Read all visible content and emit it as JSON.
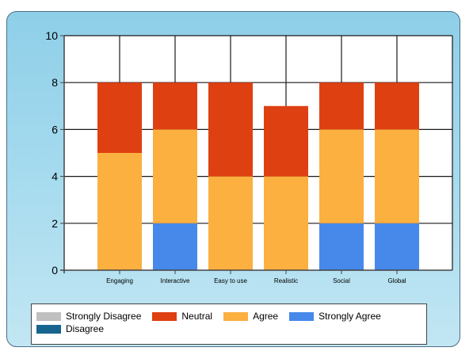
{
  "chart_data": {
    "type": "bar",
    "stacked": true,
    "categories": [
      "Engaging",
      "Interactive",
      "Easy to use",
      "Realistic",
      "Social",
      "Global"
    ],
    "series": [
      {
        "name": "Strongly Disagree",
        "color": "#c0c0c0",
        "values": [
          0,
          0,
          0,
          0,
          0,
          0
        ]
      },
      {
        "name": "Disagree",
        "color": "#17648f",
        "values": [
          0,
          0,
          0,
          0,
          0,
          0
        ]
      },
      {
        "name": "Strongly Agree",
        "color": "#4689ea",
        "values": [
          0,
          2,
          0,
          0,
          2,
          2
        ]
      },
      {
        "name": "Agree",
        "color": "#fbb040",
        "values": [
          5,
          4,
          4,
          4,
          4,
          4
        ]
      },
      {
        "name": "Neutral",
        "color": "#df4012",
        "values": [
          3,
          2,
          4,
          3,
          2,
          2
        ]
      }
    ],
    "ylim": [
      0,
      10
    ],
    "yticks": [
      0,
      2,
      4,
      6,
      8,
      10
    ],
    "grid": true,
    "xlabel": "",
    "ylabel": "",
    "title": "",
    "legend_position": "bottom"
  },
  "legend": {
    "row1": [
      {
        "label": "Strongly Disagree",
        "color": "#c0c0c0"
      },
      {
        "label": "Neutral",
        "color": "#df4012"
      },
      {
        "label": "Agree",
        "color": "#fbb040"
      },
      {
        "label": "Strongly Agree",
        "color": "#4689ea"
      }
    ],
    "row2": [
      {
        "label": "Disagree",
        "color": "#17648f"
      }
    ]
  }
}
